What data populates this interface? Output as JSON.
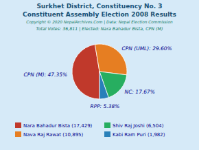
{
  "chart_data": {
    "type": "pie",
    "title": "Surkhet District, Constituency No. 3",
    "subtitle": "Constituent Assembly Election 2008 Results",
    "annotations": [
      "Copyright © 2020 NepalArchives.Com | Data: Nepal Election Commission",
      "Total Votes: 36,811 | Elected: Nara Bahadur Bista, CPN (M)"
    ],
    "categories": [
      "CPN (M): 47.35%",
      "CPN (UML): 29.60%",
      "NC: 17.67%",
      "RPP: 5.38%"
    ],
    "values": [
      47.35,
      29.6,
      17.67,
      5.38
    ],
    "colors": [
      "#c0392b",
      "#e67e22",
      "#27ae60",
      "#2980b9"
    ],
    "legend_labels": [
      "Nara Bahadur Bista (17,429)",
      "Nava Raj Rawat (10,895)",
      "Shiv Raj Joshi (6,504)",
      "Kabi Ram Puri (1,982)"
    ],
    "legend": "bottom"
  }
}
